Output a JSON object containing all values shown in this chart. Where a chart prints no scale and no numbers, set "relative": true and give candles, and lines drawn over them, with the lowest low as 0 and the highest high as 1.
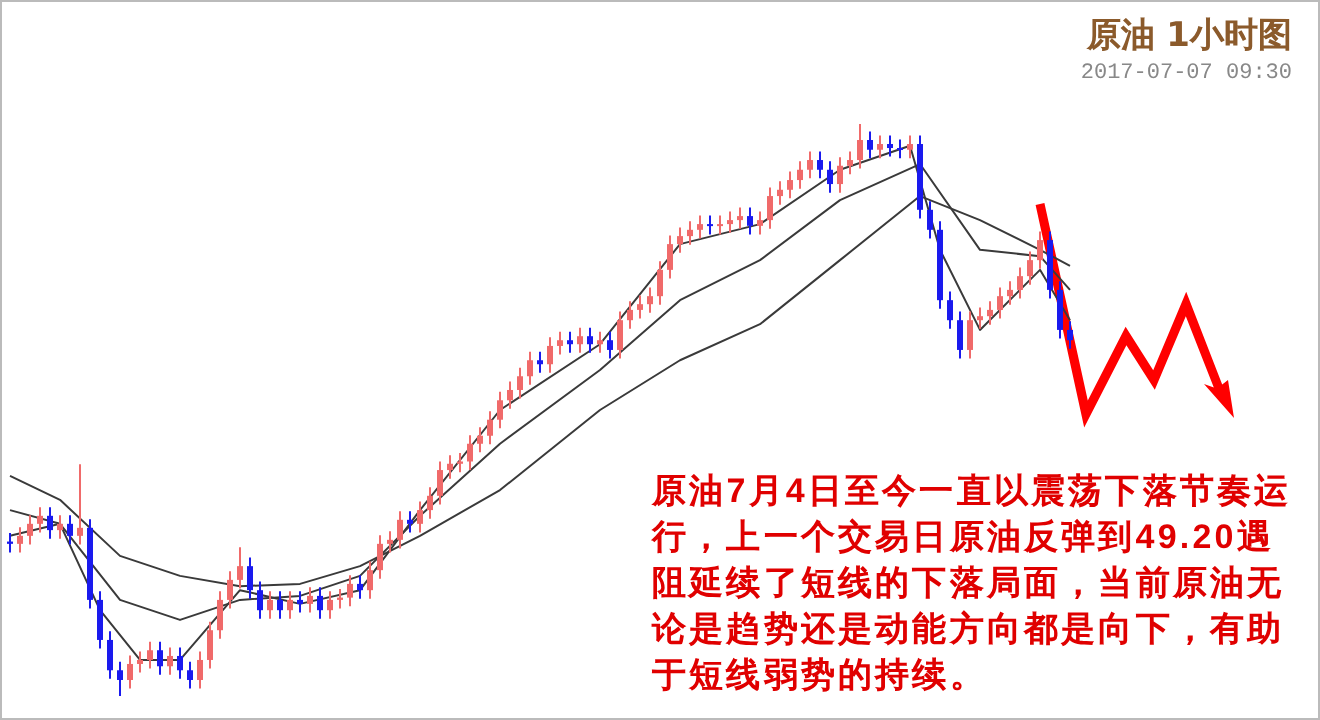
{
  "chart_data": {
    "type": "candlestick",
    "title": "原油 1小时图",
    "subtitle": "2017-07-07 09:30",
    "relative": true,
    "annotations": [
      "原油7月4日至今一直以震荡下落节奏运行，上一个交易日原油反弹到49.20遇阻延续了短线的下落局面，当前原油无论是趋势还是动能方向都是向下，有助于短线弱势的持续。"
    ],
    "categories": [
      null,
      null,
      null,
      null,
      null,
      null,
      null,
      null,
      null,
      null,
      null,
      null,
      null,
      null,
      null,
      null,
      null,
      null,
      null,
      null,
      null,
      null,
      null,
      null,
      null,
      null,
      null,
      null,
      null,
      null,
      null,
      null,
      null,
      null,
      null,
      null,
      null,
      null,
      null,
      null,
      null,
      null,
      null,
      null,
      null,
      null,
      null,
      null,
      null,
      null,
      null,
      null,
      null,
      null,
      null,
      null,
      null,
      null,
      null,
      null,
      null,
      null,
      null,
      null,
      null,
      null,
      null,
      null,
      null,
      null,
      null,
      null,
      null,
      null,
      null,
      null,
      null,
      null,
      null,
      null,
      null,
      null,
      null,
      null,
      null,
      null,
      null,
      null,
      null,
      null,
      null,
      null,
      null,
      null,
      null,
      null,
      null,
      null,
      null,
      null,
      null,
      null,
      null,
      null,
      null,
      null,
      null
    ],
    "ohlc": [
      [
        0.27,
        0.285,
        0.251,
        0.266
      ],
      [
        0.266,
        0.295,
        0.251,
        0.28
      ],
      [
        0.28,
        0.316,
        0.265,
        0.301
      ],
      [
        0.301,
        0.33,
        0.286,
        0.315
      ],
      [
        0.315,
        0.33,
        0.275,
        0.29
      ],
      [
        0.29,
        0.316,
        0.275,
        0.301
      ],
      [
        0.301,
        0.316,
        0.265,
        0.28
      ],
      [
        0.28,
        0.405,
        0.265,
        0.294
      ],
      [
        0.294,
        0.309,
        0.153,
        0.168
      ],
      [
        0.168,
        0.183,
        0.083,
        0.098
      ],
      [
        0.098,
        0.113,
        0.03,
        0.045
      ],
      [
        0.045,
        0.06,
        0.0,
        0.028
      ],
      [
        0.028,
        0.071,
        0.013,
        0.056
      ],
      [
        0.056,
        0.078,
        0.041,
        0.063
      ],
      [
        0.063,
        0.095,
        0.048,
        0.08
      ],
      [
        0.08,
        0.095,
        0.037,
        0.052
      ],
      [
        0.052,
        0.085,
        0.037,
        0.07
      ],
      [
        0.07,
        0.085,
        0.03,
        0.045
      ],
      [
        0.045,
        0.06,
        0.013,
        0.028
      ],
      [
        0.028,
        0.078,
        0.013,
        0.063
      ],
      [
        0.063,
        0.13,
        0.048,
        0.115
      ],
      [
        0.115,
        0.183,
        0.1,
        0.168
      ],
      [
        0.168,
        0.218,
        0.153,
        0.203
      ],
      [
        0.203,
        0.26,
        0.188,
        0.227
      ],
      [
        0.227,
        0.242,
        0.17,
        0.185
      ],
      [
        0.185,
        0.2,
        0.135,
        0.15
      ],
      [
        0.15,
        0.183,
        0.135,
        0.168
      ],
      [
        0.168,
        0.183,
        0.135,
        0.15
      ],
      [
        0.15,
        0.183,
        0.135,
        0.168
      ],
      [
        0.168,
        0.183,
        0.146,
        0.161
      ],
      [
        0.161,
        0.19,
        0.146,
        0.175
      ],
      [
        0.175,
        0.19,
        0.135,
        0.15
      ],
      [
        0.15,
        0.183,
        0.135,
        0.168
      ],
      [
        0.168,
        0.187,
        0.153,
        0.172
      ],
      [
        0.172,
        0.211,
        0.157,
        0.196
      ],
      [
        0.196,
        0.211,
        0.17,
        0.185
      ],
      [
        0.185,
        0.235,
        0.17,
        0.22
      ],
      [
        0.22,
        0.281,
        0.205,
        0.266
      ],
      [
        0.266,
        0.288,
        0.251,
        0.273
      ],
      [
        0.273,
        0.323,
        0.258,
        0.308
      ],
      [
        0.308,
        0.323,
        0.286,
        0.301
      ],
      [
        0.301,
        0.34,
        0.286,
        0.325
      ],
      [
        0.325,
        0.365,
        0.31,
        0.35
      ],
      [
        0.35,
        0.41,
        0.335,
        0.395
      ],
      [
        0.395,
        0.421,
        0.38,
        0.406
      ],
      [
        0.406,
        0.425,
        0.391,
        0.41
      ],
      [
        0.41,
        0.456,
        0.395,
        0.441
      ],
      [
        0.441,
        0.47,
        0.426,
        0.455
      ],
      [
        0.455,
        0.498,
        0.44,
        0.483
      ],
      [
        0.483,
        0.532,
        0.468,
        0.517
      ],
      [
        0.517,
        0.55,
        0.502,
        0.535
      ],
      [
        0.535,
        0.574,
        0.52,
        0.559
      ],
      [
        0.559,
        0.602,
        0.544,
        0.587
      ],
      [
        0.587,
        0.602,
        0.565,
        0.58
      ],
      [
        0.58,
        0.627,
        0.565,
        0.612
      ],
      [
        0.612,
        0.637,
        0.597,
        0.622
      ],
      [
        0.622,
        0.637,
        0.6,
        0.615
      ],
      [
        0.615,
        0.644,
        0.6,
        0.629
      ],
      [
        0.629,
        0.644,
        0.6,
        0.615
      ],
      [
        0.615,
        0.637,
        0.6,
        0.622
      ],
      [
        0.622,
        0.637,
        0.59,
        0.605
      ],
      [
        0.605,
        0.672,
        0.59,
        0.657
      ],
      [
        0.657,
        0.69,
        0.642,
        0.675
      ],
      [
        0.675,
        0.7,
        0.66,
        0.685
      ],
      [
        0.685,
        0.714,
        0.67,
        0.699
      ],
      [
        0.699,
        0.76,
        0.684,
        0.745
      ],
      [
        0.745,
        0.805,
        0.73,
        0.79
      ],
      [
        0.79,
        0.819,
        0.775,
        0.804
      ],
      [
        0.804,
        0.83,
        0.789,
        0.815
      ],
      [
        0.815,
        0.84,
        0.8,
        0.825
      ],
      [
        0.825,
        0.84,
        0.807,
        0.822
      ],
      [
        0.822,
        0.84,
        0.807,
        0.825
      ],
      [
        0.825,
        0.847,
        0.81,
        0.832
      ],
      [
        0.832,
        0.854,
        0.817,
        0.839
      ],
      [
        0.839,
        0.854,
        0.807,
        0.822
      ],
      [
        0.822,
        0.847,
        0.807,
        0.832
      ],
      [
        0.832,
        0.889,
        0.817,
        0.874
      ],
      [
        0.874,
        0.9,
        0.859,
        0.885
      ],
      [
        0.885,
        0.917,
        0.87,
        0.902
      ],
      [
        0.902,
        0.935,
        0.887,
        0.92
      ],
      [
        0.92,
        0.952,
        0.905,
        0.937
      ],
      [
        0.937,
        0.952,
        0.905,
        0.92
      ],
      [
        0.92,
        0.935,
        0.88,
        0.895
      ],
      [
        0.895,
        0.942,
        0.88,
        0.927
      ],
      [
        0.927,
        0.952,
        0.912,
        0.937
      ],
      [
        0.937,
        1.0,
        0.922,
        0.972
      ],
      [
        0.972,
        0.987,
        0.94,
        0.955
      ],
      [
        0.955,
        0.98,
        0.94,
        0.965
      ],
      [
        0.965,
        0.98,
        0.943,
        0.958
      ],
      [
        0.958,
        0.973,
        0.94,
        0.955
      ],
      [
        0.955,
        0.98,
        0.94,
        0.965
      ],
      [
        0.965,
        0.98,
        0.835,
        0.85
      ],
      [
        0.85,
        0.865,
        0.8,
        0.815
      ],
      [
        0.815,
        0.83,
        0.677,
        0.692
      ],
      [
        0.692,
        0.707,
        0.642,
        0.657
      ],
      [
        0.657,
        0.672,
        0.59,
        0.605
      ],
      [
        0.605,
        0.672,
        0.59,
        0.657
      ],
      [
        0.657,
        0.679,
        0.642,
        0.664
      ],
      [
        0.664,
        0.69,
        0.649,
        0.675
      ],
      [
        0.675,
        0.714,
        0.66,
        0.699
      ],
      [
        0.699,
        0.725,
        0.684,
        0.71
      ],
      [
        0.71,
        0.749,
        0.695,
        0.734
      ],
      [
        0.734,
        0.777,
        0.719,
        0.762
      ],
      [
        0.762,
        0.812,
        0.747,
        0.797
      ],
      [
        0.797,
        0.812,
        0.695,
        0.71
      ],
      [
        0.71,
        0.725,
        0.625,
        0.64
      ],
      [
        0.64,
        0.655,
        0.607,
        0.622
      ]
    ],
    "series": [
      {
        "type": "line",
        "color": "#3a3a3a",
        "values": [
          0.385,
          null,
          null,
          null,
          null,
          0.343,
          null,
          null,
          null,
          null,
          null,
          0.245,
          null,
          null,
          null,
          null,
          null,
          0.21,
          null,
          null,
          null,
          null,
          null,
          0.192,
          null,
          null,
          null,
          null,
          null,
          0.196,
          null,
          null,
          null,
          null,
          null,
          0.227,
          null,
          null,
          null,
          null,
          null,
          0.28,
          null,
          null,
          null,
          null,
          null,
          null,
          null,
          0.36,
          null,
          null,
          null,
          null,
          null,
          null,
          null,
          null,
          null,
          0.5,
          null,
          null,
          null,
          null,
          null,
          null,
          null,
          0.587,
          null,
          null,
          null,
          null,
          null,
          null,
          null,
          0.65,
          null,
          null,
          null,
          null,
          null,
          null,
          null,
          0.762,
          null,
          null,
          null,
          null,
          null,
          null,
          null,
          0.874,
          null,
          null,
          null,
          null,
          null,
          0.832,
          null,
          null,
          null,
          null,
          null,
          0.78,
          null,
          null,
          0.752
        ]
      },
      {
        "type": "line",
        "color": "#3a3a3a",
        "values": [
          0.325,
          null,
          null,
          null,
          null,
          0.301,
          null,
          null,
          null,
          null,
          null,
          0.168,
          null,
          null,
          null,
          null,
          null,
          0.133,
          null,
          null,
          null,
          null,
          null,
          0.168,
          null,
          null,
          null,
          null,
          null,
          0.175,
          null,
          null,
          null,
          null,
          null,
          0.21,
          null,
          null,
          null,
          null,
          null,
          0.315,
          null,
          null,
          null,
          null,
          null,
          null,
          null,
          0.441,
          null,
          null,
          null,
          null,
          null,
          null,
          null,
          null,
          null,
          0.57,
          null,
          null,
          null,
          null,
          null,
          null,
          null,
          0.692,
          null,
          null,
          null,
          null,
          null,
          null,
          null,
          0.762,
          null,
          null,
          null,
          null,
          null,
          null,
          null,
          0.867,
          null,
          null,
          null,
          null,
          null,
          null,
          null,
          0.93,
          null,
          null,
          null,
          null,
          null,
          0.78,
          null,
          null,
          null,
          null,
          null,
          0.769,
          null,
          null,
          0.71
        ]
      },
      {
        "type": "line",
        "color": "#3a3a3a",
        "values": [
          0.28,
          null,
          null,
          null,
          null,
          0.301,
          null,
          null,
          null,
          0.15,
          null,
          null,
          null,
          0.063,
          null,
          null,
          null,
          0.063,
          null,
          null,
          null,
          null,
          null,
          0.185,
          null,
          null,
          null,
          null,
          null,
          0.161,
          null,
          null,
          null,
          null,
          null,
          0.185,
          null,
          null,
          null,
          null,
          null,
          0.325,
          null,
          null,
          null,
          null,
          null,
          null,
          null,
          0.5,
          null,
          null,
          null,
          null,
          null,
          null,
          null,
          null,
          null,
          0.615,
          null,
          null,
          null,
          null,
          null,
          null,
          null,
          0.79,
          null,
          null,
          null,
          null,
          null,
          null,
          null,
          0.825,
          null,
          null,
          null,
          null,
          null,
          null,
          null,
          0.92,
          null,
          null,
          null,
          null,
          null,
          null,
          0.962,
          null,
          null,
          0.78,
          null,
          null,
          null,
          0.64,
          null,
          null,
          null,
          null,
          null,
          0.745,
          null,
          null,
          0.657
        ]
      }
    ]
  }
}
